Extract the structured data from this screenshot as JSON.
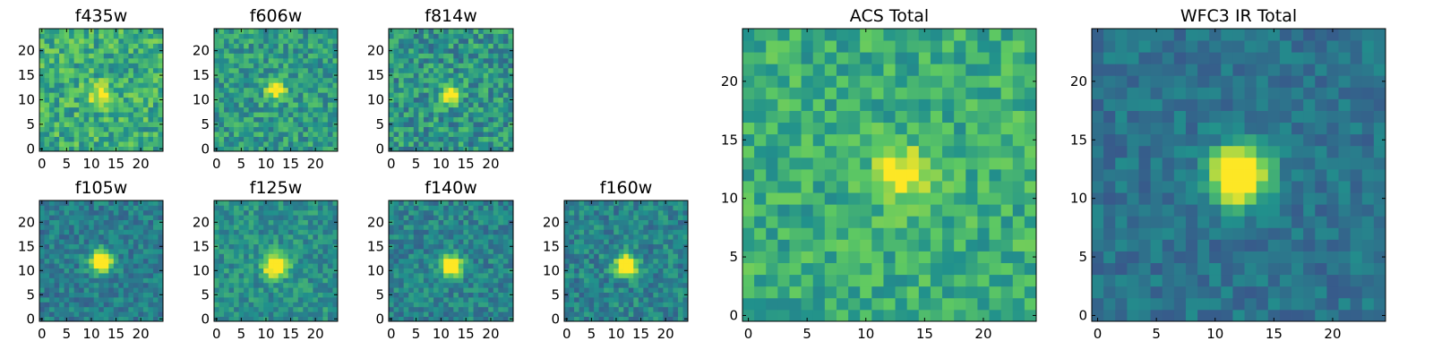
{
  "colormap": {
    "name": "viridis",
    "stops": [
      "#440154",
      "#3b528b",
      "#21918c",
      "#5ec962",
      "#fde725"
    ]
  },
  "chart_data": [
    {
      "type": "heatmap",
      "title": "f435w",
      "grid_size": 25,
      "source_center": [
        12,
        11
      ],
      "source_strength": 0.25,
      "source_sigma": 1.6,
      "base_level": 0.62,
      "noise": 0.2,
      "seed": 11,
      "xticks": [
        0,
        5,
        10,
        15,
        20
      ],
      "yticks": [
        0,
        5,
        10,
        15,
        20
      ],
      "xlim": [
        0,
        24
      ],
      "ylim": [
        0,
        24
      ]
    },
    {
      "type": "heatmap",
      "title": "f606w",
      "grid_size": 25,
      "source_center": [
        12,
        12
      ],
      "source_strength": 0.35,
      "source_sigma": 1.4,
      "base_level": 0.55,
      "noise": 0.18,
      "seed": 23,
      "xticks": [
        0,
        5,
        10,
        15,
        20
      ],
      "yticks": [
        0,
        5,
        10,
        15,
        20
      ],
      "xlim": [
        0,
        24
      ],
      "ylim": [
        0,
        24
      ]
    },
    {
      "type": "heatmap",
      "title": "f814w",
      "grid_size": 25,
      "source_center": [
        12,
        11
      ],
      "source_strength": 0.45,
      "source_sigma": 1.3,
      "base_level": 0.52,
      "noise": 0.2,
      "seed": 37,
      "xticks": [
        0,
        5,
        10,
        15,
        20
      ],
      "yticks": [
        0,
        5,
        10,
        15,
        20
      ],
      "xlim": [
        0,
        24
      ],
      "ylim": [
        0,
        24
      ]
    },
    {
      "type": "heatmap",
      "title": "f105w",
      "grid_size": 25,
      "source_center": [
        12,
        12
      ],
      "source_strength": 0.55,
      "source_sigma": 1.6,
      "base_level": 0.42,
      "noise": 0.13,
      "seed": 41,
      "xticks": [
        0,
        5,
        10,
        15,
        20
      ],
      "yticks": [
        0,
        5,
        10,
        15,
        20
      ],
      "xlim": [
        0,
        24
      ],
      "ylim": [
        0,
        24
      ]
    },
    {
      "type": "heatmap",
      "title": "f125w",
      "grid_size": 25,
      "source_center": [
        12,
        11
      ],
      "source_strength": 0.55,
      "source_sigma": 1.6,
      "base_level": 0.5,
      "noise": 0.14,
      "seed": 53,
      "xticks": [
        0,
        5,
        10,
        15,
        20
      ],
      "yticks": [
        0,
        5,
        10,
        15,
        20
      ],
      "xlim": [
        0,
        24
      ],
      "ylim": [
        0,
        24
      ]
    },
    {
      "type": "heatmap",
      "title": "f140w",
      "grid_size": 25,
      "source_center": [
        12,
        11
      ],
      "source_strength": 0.55,
      "source_sigma": 1.5,
      "base_level": 0.45,
      "noise": 0.14,
      "seed": 67,
      "xticks": [
        0,
        5,
        10,
        15,
        20
      ],
      "yticks": [
        0,
        5,
        10,
        15,
        20
      ],
      "xlim": [
        0,
        24
      ],
      "ylim": [
        0,
        24
      ]
    },
    {
      "type": "heatmap",
      "title": "f160w",
      "grid_size": 25,
      "source_center": [
        12,
        11
      ],
      "source_strength": 0.55,
      "source_sigma": 1.5,
      "base_level": 0.45,
      "noise": 0.15,
      "seed": 79,
      "xticks": [
        0,
        5,
        10,
        15,
        20
      ],
      "yticks": [
        0,
        5,
        10,
        15,
        20
      ],
      "xlim": [
        0,
        24
      ],
      "ylim": [
        0,
        24
      ]
    },
    {
      "type": "heatmap",
      "title": "ACS Total",
      "grid_size": 25,
      "source_center": [
        13,
        12
      ],
      "source_strength": 0.3,
      "source_sigma": 1.6,
      "base_level": 0.62,
      "noise": 0.16,
      "seed": 97,
      "xticks": [
        0,
        5,
        10,
        15,
        20
      ],
      "yticks": [
        0,
        5,
        10,
        15,
        20
      ],
      "xlim": [
        0,
        24
      ],
      "ylim": [
        0,
        24
      ]
    },
    {
      "type": "heatmap",
      "title": "WFC3 IR Total",
      "grid_size": 25,
      "source_center": [
        12,
        12
      ],
      "source_strength": 0.6,
      "source_sigma": 1.7,
      "base_level": 0.38,
      "noise": 0.1,
      "seed": 113,
      "xticks": [
        0,
        5,
        10,
        15,
        20
      ],
      "yticks": [
        0,
        5,
        10,
        15,
        20
      ],
      "xlim": [
        0,
        24
      ],
      "ylim": [
        0,
        24
      ]
    }
  ]
}
